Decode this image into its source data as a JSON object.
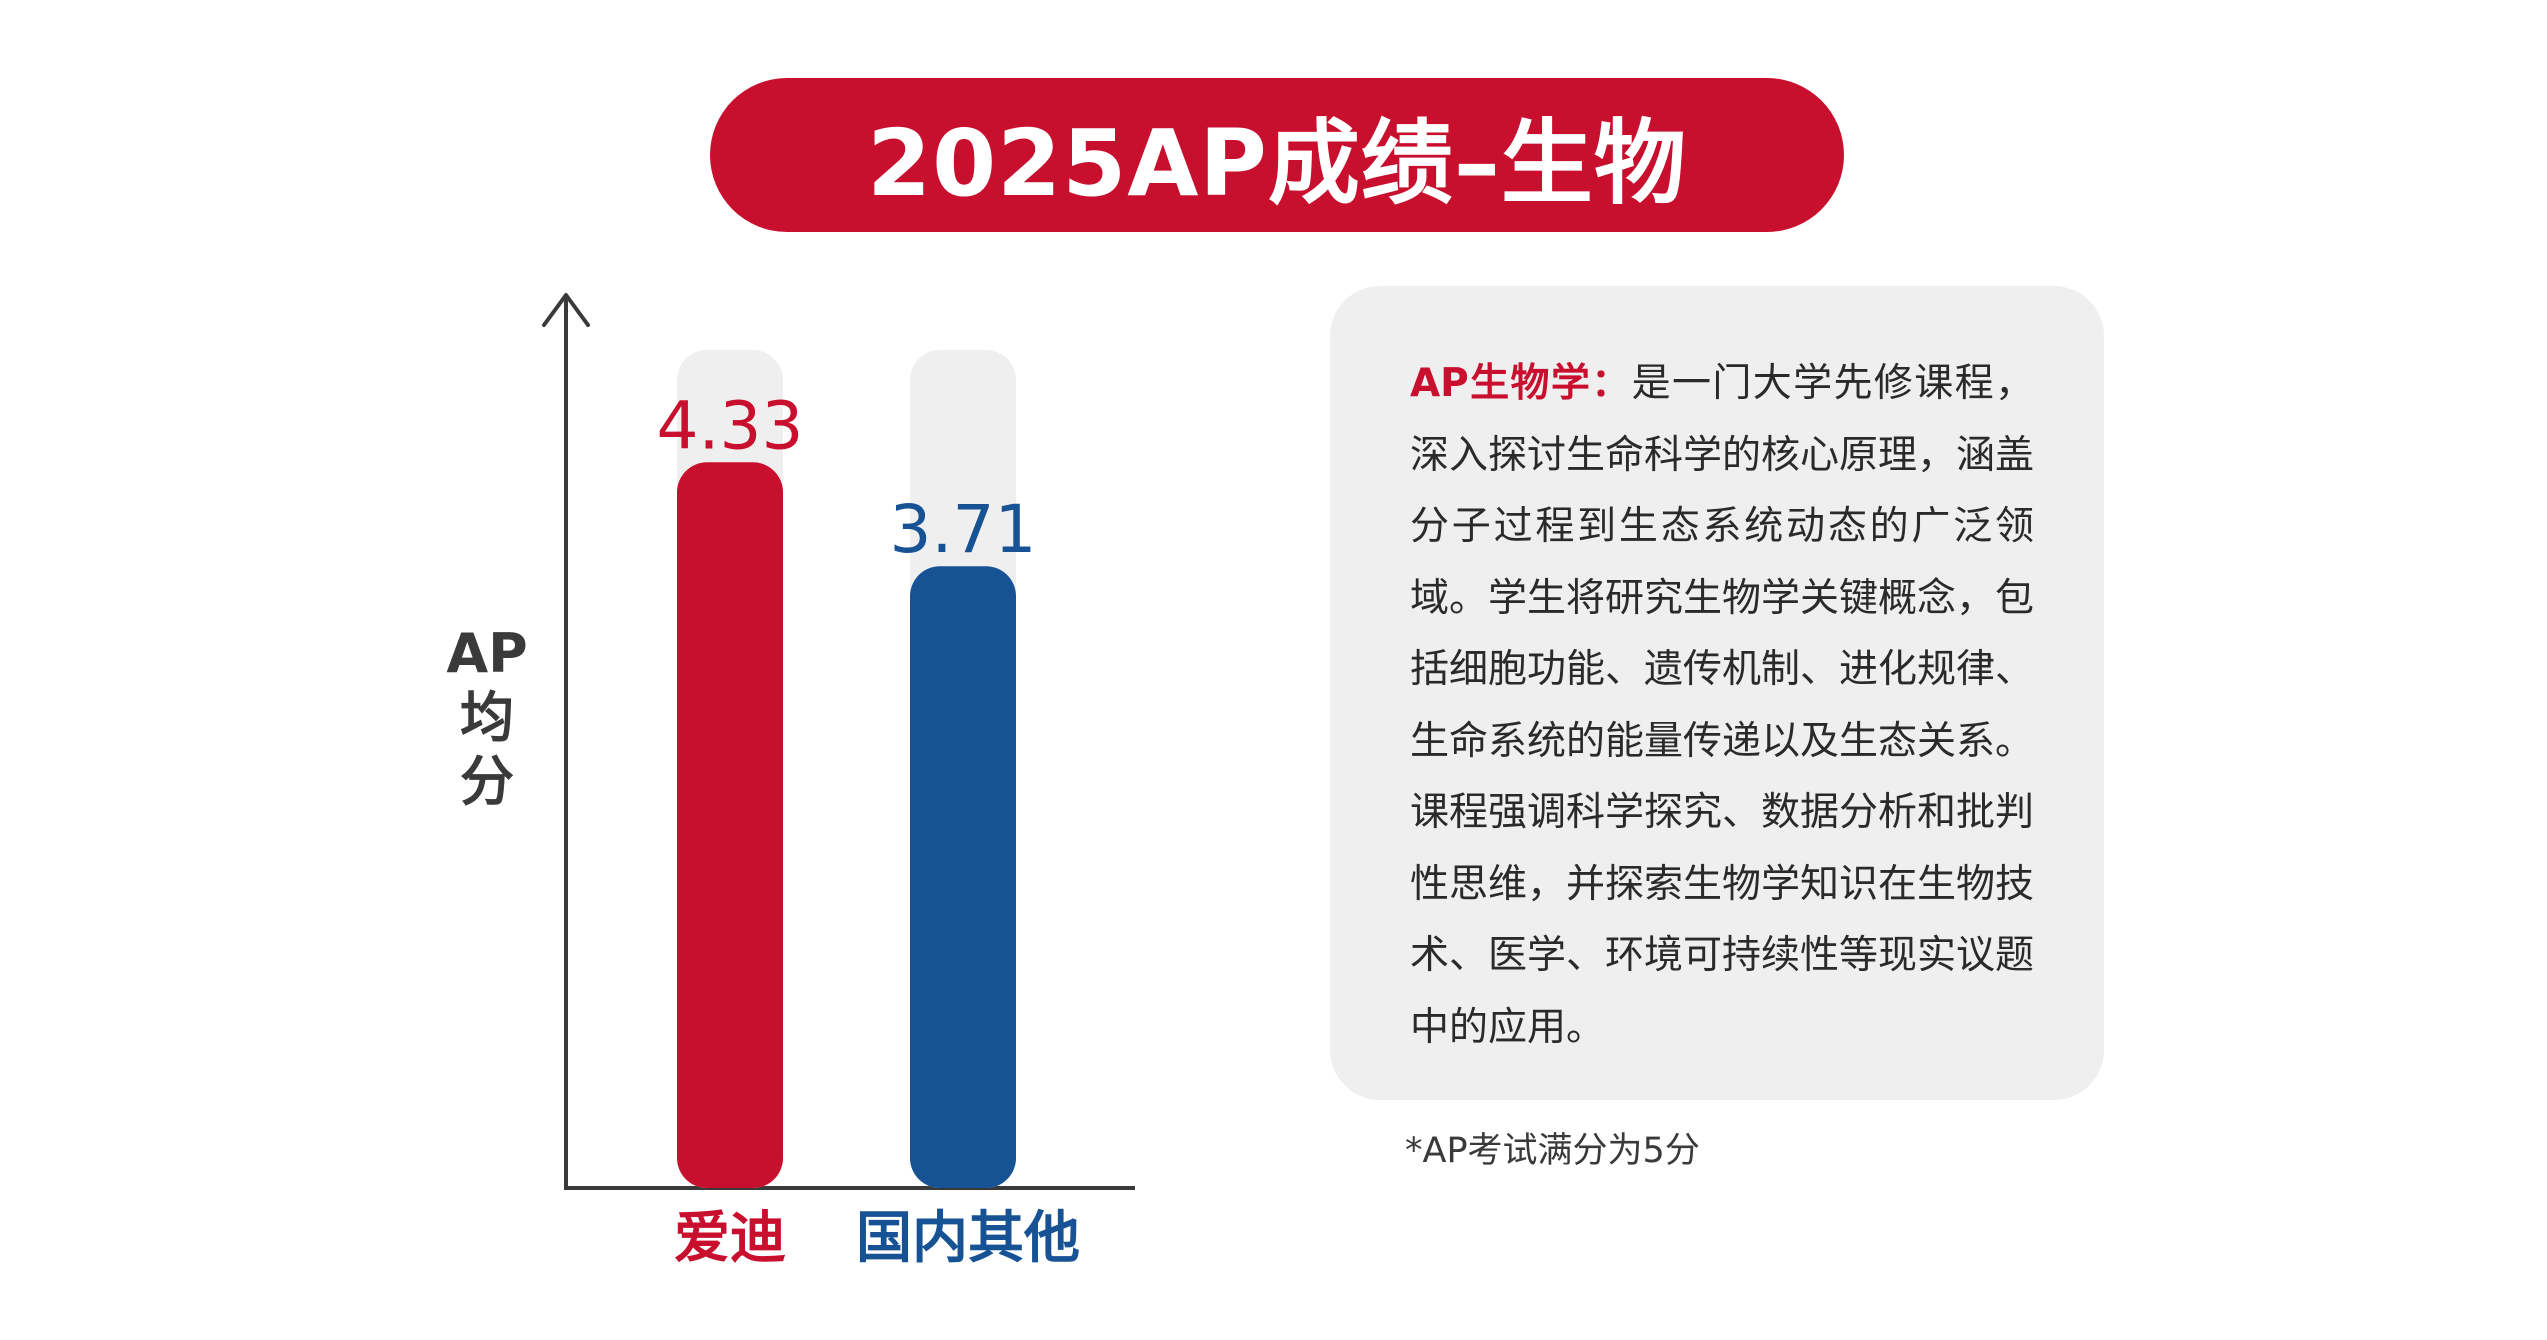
{
  "title": "2025AP成绩–生物",
  "chart_data": {
    "type": "bar",
    "categories": [
      "爱迪",
      "国内其他"
    ],
    "values": [
      4.33,
      3.71
    ],
    "value_labels": [
      "4.33",
      "3.71"
    ],
    "ylabel": "AP均分",
    "ylim": [
      0,
      5
    ],
    "grid": false,
    "legend": "none"
  },
  "colors": {
    "red": "#c8102e",
    "blue": "#165294",
    "track": "#efefef",
    "axis": "#3a3a3a"
  },
  "description": {
    "lead": "AP生物学：",
    "body": "是一门大学先修课程，深入探讨生命科学的核心原理，涵盖分子过程到生态系统动态的广泛领域。学生将研究生物学关键概念，包括细胞功能、遗传机制、进化规律、生命系统的能量传递以及生态关系。课程强调科学探究、数据分析和批判性思维，并探索生物学知识在生物技术、医学、环境可持续性等现实议题中的应用。"
  },
  "footnote": "*AP考试满分为5分"
}
